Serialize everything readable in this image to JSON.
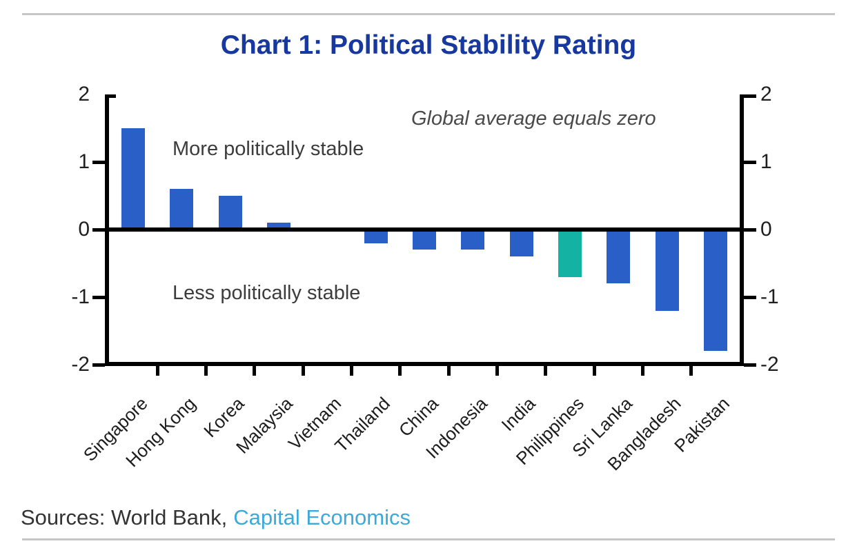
{
  "title": "Chart 1: Political Stability Rating",
  "chart_data": {
    "type": "bar",
    "categories": [
      "Singapore",
      "Hong Kong",
      "Korea",
      "Malaysia",
      "Vietnam",
      "Thailand",
      "China",
      "Indonesia",
      "India",
      "Philippines",
      "Sri Lanka",
      "Bangladesh",
      "Pakistan"
    ],
    "values": [
      1.5,
      0.6,
      0.5,
      0.1,
      0,
      -0.2,
      -0.3,
      -0.3,
      -0.4,
      -0.7,
      -0.8,
      -1.2,
      -1.8
    ],
    "ylim": [
      -2,
      2
    ],
    "yticks": [
      2,
      1,
      0,
      -1,
      -2
    ],
    "dual_axis": true,
    "grid": false,
    "bar_colors": {
      "default": "#2A5FC8",
      "highlight": "#14B2A2",
      "highlight_index": 9
    },
    "annotations": {
      "upper": "More politically stable",
      "lower": "Less politically stable",
      "note": "Global average equals zero"
    }
  },
  "sources": {
    "prefix": "Sources: World Bank,",
    "link": "Capital Economics"
  },
  "colors": {
    "title_navy": "#17389E",
    "link_blue": "#3CA9DB",
    "bar_blue": "#2A5FC8",
    "bar_teal": "#14B2A2",
    "axis_black": "#000000",
    "annotation_gray": "#3C3C3C",
    "divider_gray": "#C6C6C6"
  }
}
